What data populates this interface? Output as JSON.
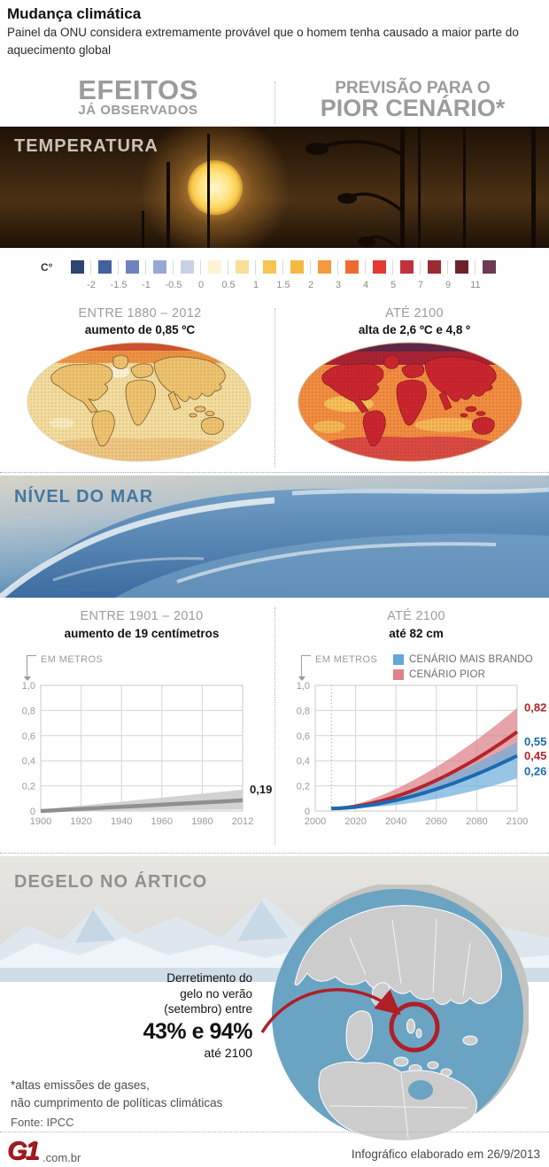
{
  "header": {
    "title": "Mudança climática",
    "subtitle": "Painel da ONU considera extremamente provável que o homem tenha causado a maior parte do aquecimento global"
  },
  "columns": {
    "observed": {
      "line1": "EFEITOS",
      "line2": "JÁ OBSERVADOS"
    },
    "forecast": {
      "line1": "PREVISÃO PARA O",
      "line2": "PIOR CENÁRIO*"
    }
  },
  "temperature": {
    "label": "TEMPERATURA",
    "scale": {
      "unit": "C°",
      "colors": [
        "#2e4372",
        "#41619f",
        "#6c83c0",
        "#96a9d4",
        "#c8d1e6",
        "#fdf3d4",
        "#f8df9a",
        "#f5c453",
        "#f5b942",
        "#f49a3c",
        "#ef6a33",
        "#e23a32",
        "#c0323e",
        "#9c2a31",
        "#6b242c",
        "#6d3a54"
      ],
      "tick_labels": [
        "-2",
        "-1.5",
        "-1",
        "-0.5",
        "0",
        "0.5",
        "1",
        "1.5",
        "2",
        "3",
        "4",
        "5",
        "7",
        "9",
        "11"
      ]
    },
    "observed": {
      "period": "ENTRE 1880 – 2012",
      "value": "aumento de 0,85 ºC"
    },
    "forecast": {
      "period": "ATÉ 2100",
      "value": "alta de 2,6 ºC e 4,8 º"
    }
  },
  "sea_level": {
    "label": "NÍVEL DO MAR",
    "observed": {
      "period": "ENTRE 1901 – 2010",
      "value": "aumento de 19 centímetros",
      "axis_label": "EM METROS"
    },
    "forecast": {
      "period": "ATÉ 2100",
      "value": "até 82 cm",
      "axis_label": "EM METROS",
      "legend": [
        {
          "label": "CENÁRIO MAIS BRANDO",
          "color": "#62a8d8"
        },
        {
          "label": "CENÁRIO PIOR",
          "color": "#e2808a"
        }
      ]
    }
  },
  "chart_data": [
    {
      "type": "area",
      "kind": "observed",
      "title": "Nível do mar entre 1901 – 2010 (aumento de 19 centímetros)",
      "ylabel": "EM METROS",
      "ylim": [
        0,
        1.0
      ],
      "y_ticks": [
        "1,0",
        "0,8",
        "0,6",
        "0,4",
        "0,2",
        "0"
      ],
      "x_ticks": [
        "1900",
        "1920",
        "1940",
        "1960",
        "1980",
        "2012"
      ],
      "band": {
        "x": [
          1900,
          2012
        ],
        "upper": [
          0.012,
          0.17
        ],
        "lower": [
          0,
          0.012
        ],
        "color": "#d2d2d2"
      },
      "mean_line": {
        "x": [
          1900,
          2012
        ],
        "y": [
          0,
          0.085
        ],
        "color": "#8f8f8f"
      },
      "end_label": {
        "text": "0,19",
        "pos": 0.17,
        "color": "#1a1a1a"
      },
      "observed_rise_m": 0.19
    },
    {
      "type": "area",
      "kind": "forecast",
      "title": "Nível do mar até 2100 (até 82 cm)",
      "ylabel": "EM METROS",
      "ylim": [
        0,
        1.0
      ],
      "y_ticks": [
        "1,0",
        "0,8",
        "0,6",
        "0,4",
        "0,2",
        "0"
      ],
      "x_ticks": [
        "2000",
        "2020",
        "2040",
        "2060",
        "2080",
        "2100"
      ],
      "x_range": [
        2000,
        2100
      ],
      "start": {
        "year": 2008,
        "value": 0.02
      },
      "series": [
        {
          "name": "CENÁRIO PIOR",
          "band_color": "#dd7f88",
          "line_color": "#b5242b",
          "end_line": 0.63,
          "end_upper": 0.82,
          "end_lower": 0.45
        },
        {
          "name": "CENÁRIO MAIS BRANDO",
          "band_color": "#6fafdb",
          "line_color": "#1a6ab0",
          "end_line": 0.44,
          "end_upper": 0.55,
          "end_lower": 0.26
        }
      ],
      "right_labels": [
        {
          "text": "0,82",
          "pos": 0.82,
          "color": "#b5242b"
        },
        {
          "text": "0,55",
          "pos": 0.55,
          "color": "#1a6ab0"
        },
        {
          "text": "0,45",
          "pos": 0.435,
          "color": "#b5242b"
        },
        {
          "text": "0,26",
          "pos": 0.315,
          "color": "#1a6ab0"
        }
      ]
    }
  ],
  "arctic": {
    "label": "DEGELO NO ÁRTICO",
    "annotation": {
      "line1": "Derretimento do",
      "line2": "gelo no verão",
      "line3": "(setembro) entre",
      "highlight": "43% e 94%",
      "line4": "até 2100"
    },
    "footnote_line1": "*altas emissões de gases,",
    "footnote_line2": "não cumprimento de políticas climáticas",
    "source": "Fonte: IPCC"
  },
  "footer": {
    "logo": "G1",
    "logo_suffix": ".com.br",
    "credit": "Infográfico elaborado em 26/9/2013"
  }
}
